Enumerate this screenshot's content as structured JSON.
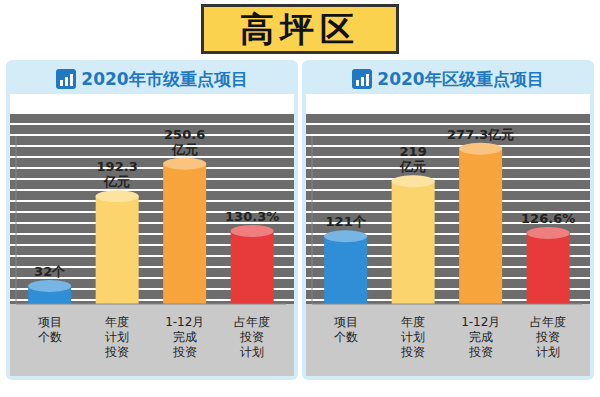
{
  "title": "高坪区",
  "chart_data": [
    {
      "type": "bar",
      "title": "2020年市级重点项目",
      "categories": [
        "项目\n个数",
        "年度\n计划\n投资",
        "1-12月\n完成\n投资",
        "占年度\n投资\n计划"
      ],
      "values": [
        32,
        192.3,
        250.6,
        130.3
      ],
      "value_labels": [
        "32个",
        "192.3\n亿元",
        "250.6\n亿元",
        "130.3%"
      ],
      "colors": [
        "#2f8ed6",
        "#fcd46e",
        "#f7a43c",
        "#e63b3a"
      ],
      "ylim": [
        0,
        300
      ],
      "data_labels": true,
      "tick_labels": "x",
      "grid": false
    },
    {
      "type": "bar",
      "title": "2020年区级重点项目",
      "categories": [
        "项目\n个数",
        "年度\n计划\n投资",
        "1-12月\n完成\n投资",
        "占年度\n投资\n计划"
      ],
      "values": [
        121,
        219,
        277.3,
        126.6
      ],
      "value_labels": [
        "121个",
        "219\n亿元",
        "277.3亿元",
        "126.6%"
      ],
      "colors": [
        "#2f8ed6",
        "#fcd46e",
        "#f7a43c",
        "#e63b3a"
      ],
      "ylim": [
        0,
        300
      ],
      "data_labels": true,
      "tick_labels": "x",
      "grid": false
    }
  ]
}
